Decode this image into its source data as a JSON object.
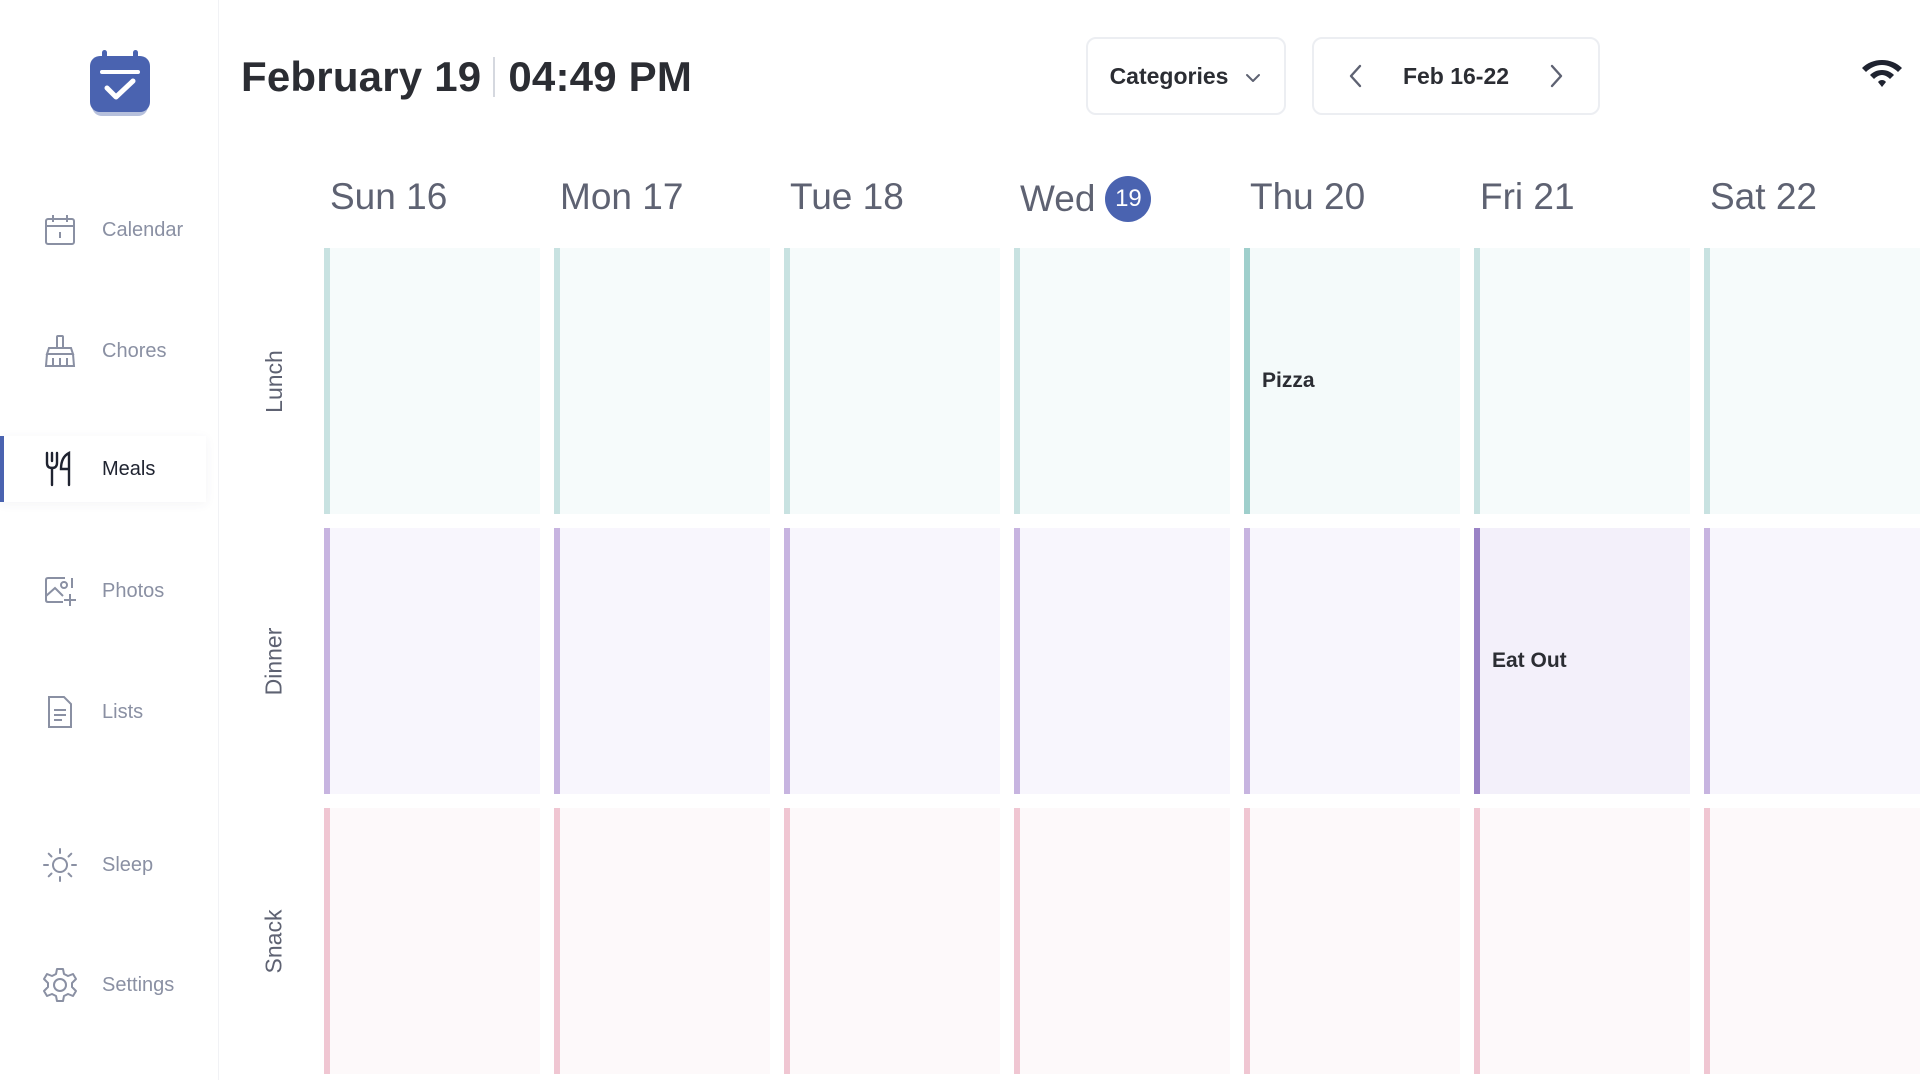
{
  "sidebar": {
    "items": [
      {
        "label": "Calendar",
        "icon": "calendar-icon"
      },
      {
        "label": "Chores",
        "icon": "broom-icon"
      },
      {
        "label": "Meals",
        "icon": "fork-knife-icon",
        "active": true
      },
      {
        "label": "Photos",
        "icon": "photo-add-icon"
      },
      {
        "label": "Lists",
        "icon": "list-icon"
      },
      {
        "label": "Sleep",
        "icon": "sun-icon"
      },
      {
        "label": "Settings",
        "icon": "gear-icon"
      }
    ]
  },
  "header": {
    "date": "February 19",
    "time": "04:49 PM",
    "categories_label": "Categories",
    "week_range": "Feb 16-22"
  },
  "days": [
    {
      "name": "Sun",
      "num": "16"
    },
    {
      "name": "Mon",
      "num": "17"
    },
    {
      "name": "Tue",
      "num": "18"
    },
    {
      "name": "Wed",
      "num": "19",
      "today": true
    },
    {
      "name": "Thu",
      "num": "20"
    },
    {
      "name": "Fri",
      "num": "21"
    },
    {
      "name": "Sat",
      "num": "22"
    }
  ],
  "day_labels": [
    "Sun 16",
    "Mon 17",
    "Tue 18",
    "Wed",
    "Thu 20",
    "Fri 21",
    "Sat 22"
  ],
  "today_badge": "19",
  "rows": [
    {
      "label": "Lunch",
      "meals": [
        "",
        "",
        "",
        "",
        "Pizza",
        "",
        ""
      ]
    },
    {
      "label": "Dinner",
      "meals": [
        "",
        "",
        "",
        "",
        "",
        "Eat Out",
        ""
      ]
    },
    {
      "label": "Snack",
      "meals": [
        "",
        "",
        "",
        "",
        "",
        "",
        ""
      ]
    }
  ],
  "colors": {
    "accent": "#4a63b0",
    "lunch": "#c8e2e1",
    "dinner": "#c7b4e0",
    "snack": "#f0c6d2"
  }
}
